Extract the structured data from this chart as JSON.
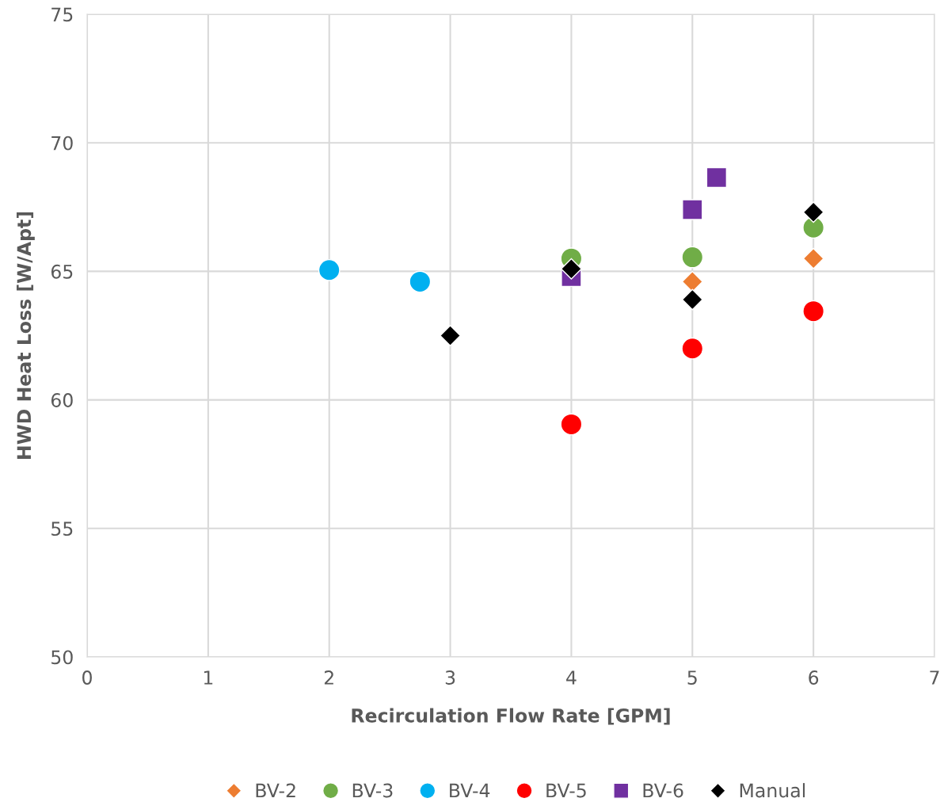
{
  "chart_data": {
    "type": "scatter",
    "xlabel": "Recirculation Flow Rate [GPM]",
    "ylabel": "HWD Heat Loss [W/Apt]",
    "xlim": [
      0,
      7
    ],
    "xticks": [
      0,
      1,
      2,
      3,
      4,
      5,
      6,
      7
    ],
    "ylim": [
      50,
      75
    ],
    "yticks": [
      50,
      55,
      60,
      65,
      70,
      75
    ],
    "grid": true,
    "legend": "bottom",
    "series": [
      {
        "name": "BV-2",
        "color": "#ed7d31",
        "marker": "diamond",
        "x": [
          5,
          6
        ],
        "values": [
          64.6,
          65.5
        ]
      },
      {
        "name": "BV-3",
        "color": "#70ad47",
        "marker": "circle",
        "x": [
          4,
          5,
          6
        ],
        "values": [
          65.5,
          65.55,
          66.7
        ]
      },
      {
        "name": "BV-4",
        "color": "#00b0f0",
        "marker": "circle",
        "x": [
          2,
          2.75
        ],
        "values": [
          65.05,
          64.6
        ]
      },
      {
        "name": "BV-5",
        "color": "#ff0000",
        "marker": "circle",
        "x": [
          4,
          5,
          6
        ],
        "values": [
          59.05,
          62.0,
          63.45
        ]
      },
      {
        "name": "BV-6",
        "color": "#7030a0",
        "marker": "square",
        "x": [
          4,
          5,
          5.2
        ],
        "values": [
          64.8,
          67.4,
          68.65
        ]
      },
      {
        "name": "Manual",
        "color": "#000000",
        "marker": "diamond",
        "x": [
          3,
          4,
          5,
          6
        ],
        "values": [
          62.5,
          65.1,
          63.9,
          67.3
        ]
      }
    ]
  }
}
